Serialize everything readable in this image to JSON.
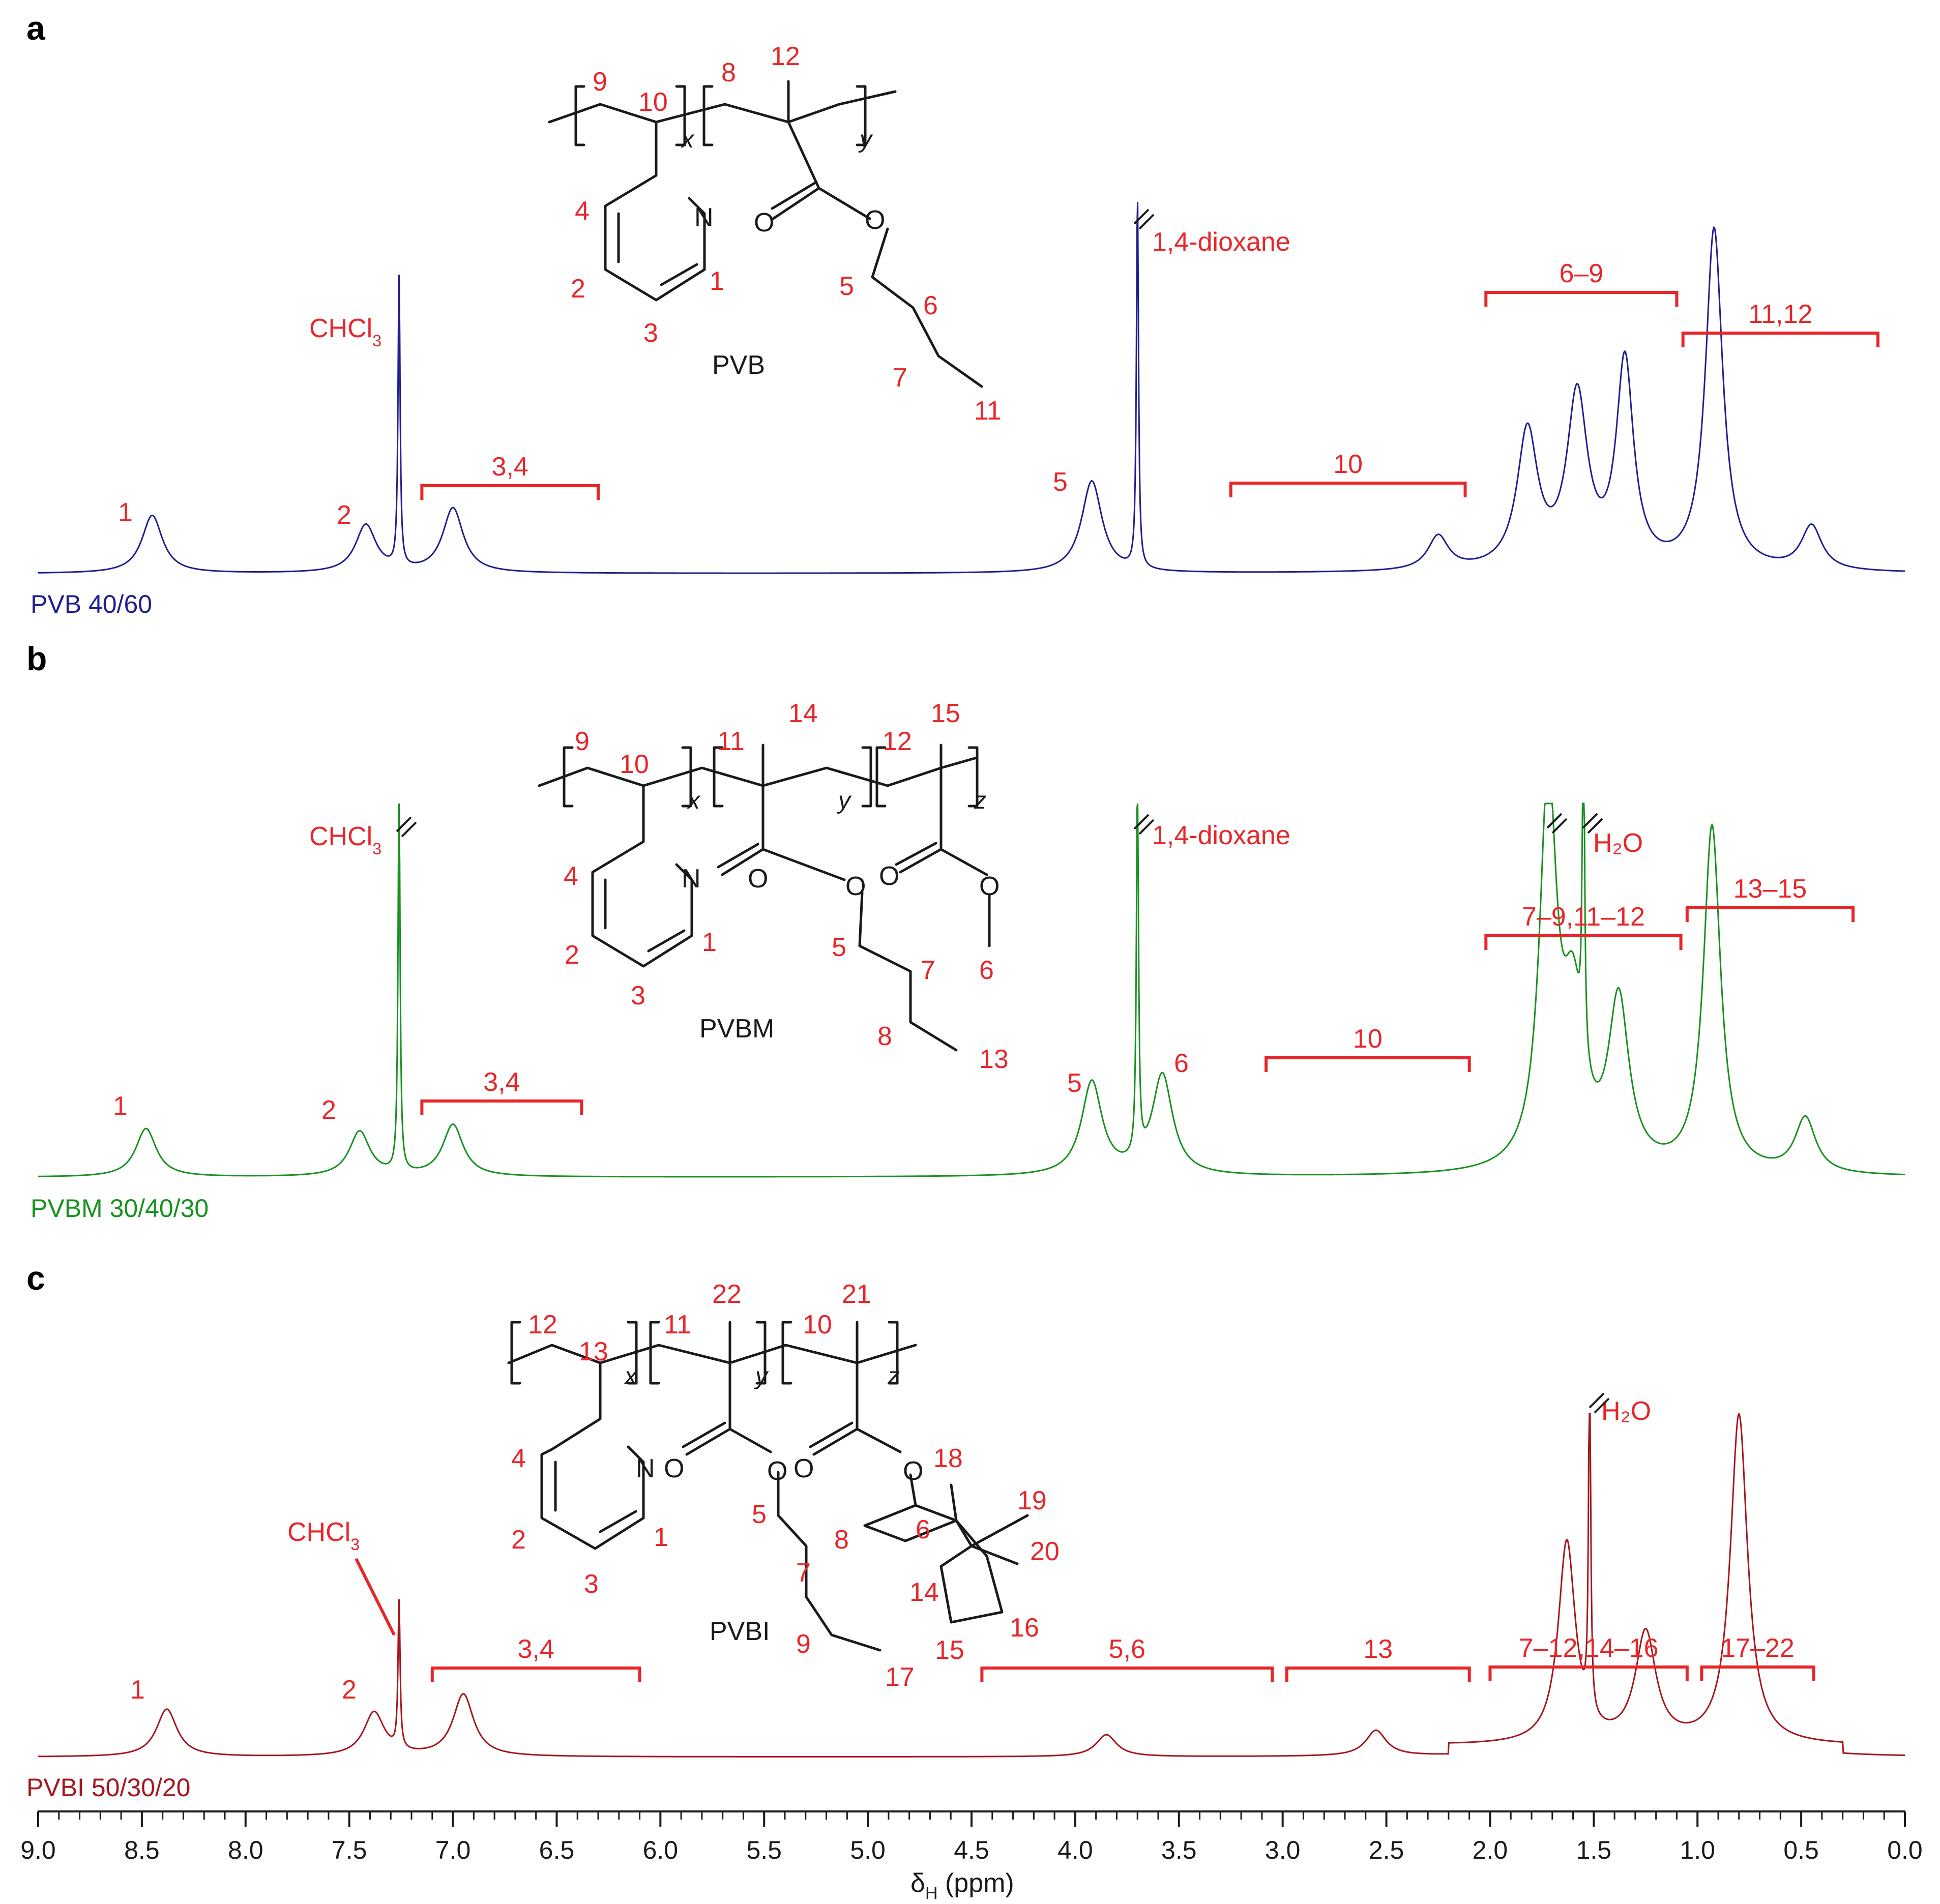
{
  "axis": {
    "xlabel_main": "δ",
    "xlabel_sub": "H",
    "xlabel_unit": " (ppm)",
    "ticks": [
      "9.0",
      "8.5",
      "8.0",
      "7.5",
      "7.0",
      "6.5",
      "6.0",
      "5.5",
      "5.0",
      "4.5",
      "4.0",
      "3.5",
      "3.0",
      "2.5",
      "2.0",
      "1.5",
      "1.0",
      "0.5",
      "0.0"
    ],
    "xlim": [
      9.0,
      0.0
    ]
  },
  "panels": [
    {
      "letter": "a",
      "series_name": "PVB 40/60",
      "color": "#1f1f8f",
      "polymer_name": "PVB",
      "solvent_labels": {
        "chcl3": "CHCl",
        "chcl3_sub": "3",
        "dioxane": "1,4-dioxane"
      },
      "peak_labels": [
        "1",
        "2",
        "5"
      ],
      "brackets": [
        {
          "label": "3,4",
          "from": 7.15,
          "to": 6.3
        },
        {
          "label": "10",
          "from": 3.25,
          "to": 2.12
        },
        {
          "label": "6–9",
          "from": 2.02,
          "to": 1.1
        },
        {
          "label": "11,12",
          "from": 1.07,
          "to": 0.13
        }
      ],
      "structure_labels": {
        "n9": "9",
        "n10": "10",
        "n8": "8",
        "n12": "12",
        "x": "x",
        "y": "y",
        "n4": "4",
        "n2": "2",
        "n3": "3",
        "n1": "1",
        "N": "N",
        "O1": "O",
        "O2": "O",
        "n5": "5",
        "n6": "6",
        "n7": "7",
        "n11": "11"
      }
    },
    {
      "letter": "b",
      "series_name": "PVBM 30/40/30",
      "color": "#17911f",
      "polymer_name": "PVBM",
      "solvent_labels": {
        "chcl3": "CHCl",
        "chcl3_sub": "3",
        "dioxane": "1,4-dioxane",
        "water": "H₂O"
      },
      "peak_labels": [
        "1",
        "2",
        "5",
        "6"
      ],
      "brackets": [
        {
          "label": "3,4",
          "from": 7.15,
          "to": 6.38
        },
        {
          "label": "10",
          "from": 3.08,
          "to": 2.1
        },
        {
          "label": "7–9,11–12",
          "from": 2.02,
          "to": 1.08
        },
        {
          "label": "13–15",
          "from": 1.05,
          "to": 0.25
        }
      ],
      "structure_labels": {
        "n9": "9",
        "n10": "10",
        "n11": "11",
        "n14": "14",
        "n12": "12",
        "n15": "15",
        "x": "x",
        "y": "y",
        "z": "z",
        "n4": "4",
        "n2": "2",
        "n3": "3",
        "n1": "1",
        "N": "N",
        "O1": "O",
        "O2": "O",
        "O3": "O",
        "O4": "O",
        "n5": "5",
        "n7": "7",
        "n8": "8",
        "n13": "13",
        "n6": "6"
      }
    },
    {
      "letter": "c",
      "series_name": "PVBI 50/30/20",
      "color": "#a5161c",
      "polymer_name": "PVBI",
      "solvent_labels": {
        "chcl3": "CHCl",
        "chcl3_sub": "3",
        "water": "H₂O"
      },
      "peak_labels": [
        "1",
        "2"
      ],
      "brackets": [
        {
          "label": "3,4",
          "from": 7.1,
          "to": 6.1
        },
        {
          "label": "5,6",
          "from": 4.45,
          "to": 3.05
        },
        {
          "label": "13",
          "from": 2.98,
          "to": 2.1
        },
        {
          "label": "7–12,14–16",
          "from": 2.0,
          "to": 1.05
        },
        {
          "label": "17–22",
          "from": 0.98,
          "to": 0.44
        }
      ],
      "structure_labels": {
        "n12": "12",
        "n13": "13",
        "n11": "11",
        "n22": "22",
        "n10": "10",
        "n21": "21",
        "x": "x",
        "y": "y",
        "z": "z",
        "n4": "4",
        "n2": "2",
        "n3": "3",
        "n1": "1",
        "N": "N",
        "O1": "O",
        "O2": "O",
        "O3": "O",
        "O4": "O",
        "n5": "5",
        "n7": "7",
        "n9": "9",
        "n17": "17",
        "n18": "18",
        "n19": "19",
        "n20": "20",
        "n6": "6",
        "n8": "8",
        "n14": "14",
        "n15": "15",
        "n16": "16"
      }
    }
  ],
  "chart_data": [
    {
      "type": "line",
      "name": "PVB 40/60",
      "xlabel": "δH (ppm)",
      "xlim": [
        9.0,
        0.0
      ],
      "peaks": [
        {
          "label": "1",
          "ppm": 8.45,
          "rel_height": 0.17
        },
        {
          "label": "2",
          "ppm": 7.42,
          "rel_height": 0.14
        },
        {
          "label": "CHCl3",
          "ppm": 7.26,
          "rel_height": 0.85
        },
        {
          "label": "3,4",
          "ppm": 7.0,
          "rel_height": 0.19
        },
        {
          "label": "5",
          "ppm": 3.92,
          "rel_height": 0.27
        },
        {
          "label": "1,4-dioxane",
          "ppm": 3.7,
          "rel_height": 1.1
        },
        {
          "label": "",
          "ppm": 2.25,
          "rel_height": 0.1
        },
        {
          "label": "",
          "ppm": 1.82,
          "rel_height": 0.4
        },
        {
          "label": "",
          "ppm": 1.58,
          "rel_height": 0.5
        },
        {
          "label": "",
          "ppm": 1.35,
          "rel_height": 0.6
        },
        {
          "label": "",
          "ppm": 0.92,
          "rel_height": 1.0
        },
        {
          "label": "",
          "ppm": 0.45,
          "rel_height": 0.13
        }
      ]
    },
    {
      "type": "line",
      "name": "PVBM 30/40/30",
      "xlabel": "δH (ppm)",
      "xlim": [
        9.0,
        0.0
      ],
      "peaks": [
        {
          "label": "1",
          "ppm": 8.48,
          "rel_height": 0.14
        },
        {
          "label": "2",
          "ppm": 7.45,
          "rel_height": 0.13
        },
        {
          "label": "CHCl3",
          "ppm": 7.26,
          "rel_height": 1.1
        },
        {
          "label": "3,4",
          "ppm": 7.0,
          "rel_height": 0.15
        },
        {
          "label": "5",
          "ppm": 3.92,
          "rel_height": 0.27
        },
        {
          "label": "1,4-dioxane",
          "ppm": 3.7,
          "rel_height": 1.1
        },
        {
          "label": "6",
          "ppm": 3.58,
          "rel_height": 0.29
        },
        {
          "label": "",
          "ppm": 1.72,
          "rel_height": 1.1
        },
        {
          "label": "",
          "ppm": 1.6,
          "rel_height": 0.43
        },
        {
          "label": "H2O",
          "ppm": 1.55,
          "rel_height": 1.1
        },
        {
          "label": "",
          "ppm": 1.38,
          "rel_height": 0.48
        },
        {
          "label": "",
          "ppm": 0.93,
          "rel_height": 1.0
        },
        {
          "label": "",
          "ppm": 0.48,
          "rel_height": 0.16
        }
      ]
    },
    {
      "type": "line",
      "name": "PVBI 50/30/20",
      "xlabel": "δH (ppm)",
      "xlim": [
        9.0,
        0.0
      ],
      "peaks": [
        {
          "label": "1",
          "ppm": 8.38,
          "rel_height": 0.13
        },
        {
          "label": "2",
          "ppm": 7.38,
          "rel_height": 0.12
        },
        {
          "label": "CHCl3",
          "ppm": 7.26,
          "rel_height": 0.4
        },
        {
          "label": "3,4",
          "ppm": 6.95,
          "rel_height": 0.17
        },
        {
          "label": "",
          "ppm": 3.85,
          "rel_height": 0.06
        },
        {
          "label": "",
          "ppm": 2.55,
          "rel_height": 0.07
        },
        {
          "label": "",
          "ppm": 1.63,
          "rel_height": 0.55
        },
        {
          "label": "H2O",
          "ppm": 1.52,
          "rel_height": 1.0
        },
        {
          "label": "",
          "ppm": 1.25,
          "rel_height": 0.3
        },
        {
          "label": "",
          "ppm": 0.8,
          "rel_height": 0.9
        }
      ]
    }
  ]
}
